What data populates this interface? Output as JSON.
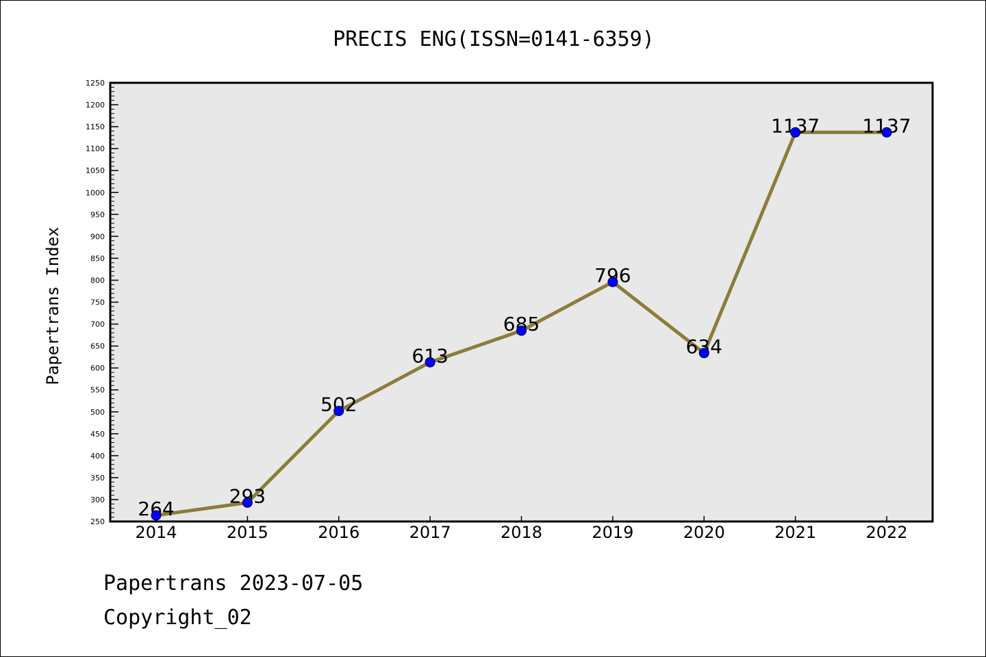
{
  "chart_data": {
    "type": "line",
    "title": "PRECIS ENG(ISSN=0141-6359)",
    "ylabel": "Papertrans Index",
    "xlabel": "",
    "categories": [
      "2014",
      "2015",
      "2016",
      "2017",
      "2018",
      "2019",
      "2020",
      "2021",
      "2022"
    ],
    "series": [
      {
        "values": [
          264,
          293,
          502,
          613,
          685,
          796,
          634,
          1137,
          1137
        ]
      }
    ],
    "data_labels": [
      "264",
      "293",
      "502",
      "613",
      "685",
      "796",
      "634",
      "1137",
      "1137"
    ],
    "ylim": [
      250,
      1250
    ],
    "yticks": [
      250,
      300,
      350,
      400,
      450,
      500,
      550,
      600,
      650,
      700,
      750,
      800,
      850,
      900,
      950,
      1000,
      1050,
      1100,
      1150,
      1200,
      1250
    ],
    "ytick_labels": [
      "250",
      "300",
      "350",
      "400",
      "450",
      "500",
      "550",
      "600",
      "650",
      "700",
      "750",
      "800",
      "850",
      "900",
      "950",
      "1000",
      "1050",
      "1100",
      "1150",
      "1200",
      "1250"
    ],
    "y_minor_step": 10,
    "grid": false,
    "legend": "none",
    "colors": {
      "plot_background": "#e8e8e8",
      "line": "#8b7d3a",
      "marker": "#0000ff",
      "axis": "#000000"
    }
  },
  "footer": {
    "date_line": "Papertrans 2023-07-05",
    "copyright_line": "Copyright_02"
  }
}
